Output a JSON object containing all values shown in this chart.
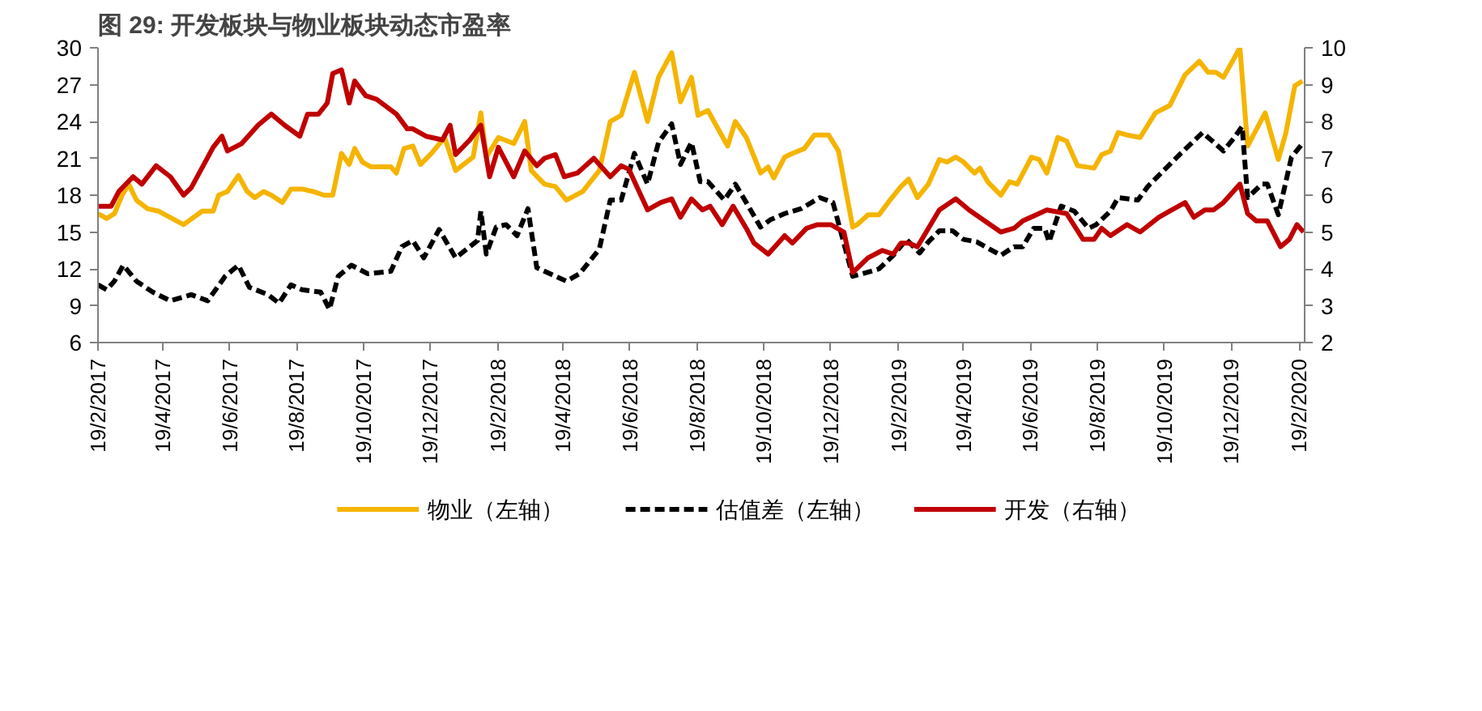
{
  "chart_data": {
    "type": "line",
    "title": "图 29: 开发板块与物业板块动态市盈率",
    "xlim": [
      "2017-02-19",
      "2020-02-24"
    ],
    "xticks": [
      {
        "value": "2017-02-19",
        "label": "19/2/2017"
      },
      {
        "value": "2017-04-19",
        "label": "19/4/2017"
      },
      {
        "value": "2017-06-19",
        "label": "19/6/2017"
      },
      {
        "value": "2017-08-19",
        "label": "19/8/2017"
      },
      {
        "value": "2017-10-19",
        "label": "19/10/2017"
      },
      {
        "value": "2017-12-19",
        "label": "19/12/2017"
      },
      {
        "value": "2018-02-19",
        "label": "19/2/2018"
      },
      {
        "value": "2018-04-19",
        "label": "19/4/2018"
      },
      {
        "value": "2018-06-19",
        "label": "19/6/2018"
      },
      {
        "value": "2018-08-19",
        "label": "19/8/2018"
      },
      {
        "value": "2018-10-19",
        "label": "19/10/2018"
      },
      {
        "value": "2018-12-19",
        "label": "19/12/2018"
      },
      {
        "value": "2019-02-19",
        "label": "19/2/2019"
      },
      {
        "value": "2019-04-19",
        "label": "19/4/2019"
      },
      {
        "value": "2019-06-19",
        "label": "19/6/2019"
      },
      {
        "value": "2019-08-19",
        "label": "19/8/2019"
      },
      {
        "value": "2019-10-19",
        "label": "19/10/2019"
      },
      {
        "value": "2019-12-19",
        "label": "19/12/2019"
      },
      {
        "value": "2020-02-19",
        "label": "19/2/2020"
      }
    ],
    "ylim": [
      6,
      30
    ],
    "yticks": [
      6,
      9,
      12,
      15,
      18,
      21,
      24,
      27,
      30
    ],
    "y2lim": [
      2,
      10
    ],
    "y2ticks": [
      2,
      3,
      4,
      5,
      6,
      7,
      8,
      9,
      10
    ],
    "legend": "bottom",
    "series": [
      {
        "name": "物业（左轴）",
        "color": "#f5b400",
        "line_style": "solid",
        "x": [
          "2017-02-19",
          "2017-02-27",
          "2017-03-06",
          "2017-03-13",
          "2017-03-19",
          "2017-03-26",
          "2017-04-05",
          "2017-04-15",
          "2017-05-08",
          "2017-05-25",
          "2017-06-04",
          "2017-06-09",
          "2017-06-17",
          "2017-06-27",
          "2017-07-05",
          "2017-07-12",
          "2017-07-20",
          "2017-07-27",
          "2017-08-06",
          "2017-08-14",
          "2017-08-24",
          "2017-09-03",
          "2017-09-13",
          "2017-09-21",
          "2017-09-29",
          "2017-10-06",
          "2017-10-11",
          "2017-10-18",
          "2017-10-26",
          "2017-11-13",
          "2017-11-18",
          "2017-11-25",
          "2017-12-03",
          "2017-12-10",
          "2017-12-20",
          "2018-01-01",
          "2018-01-11",
          "2018-01-27",
          "2018-02-03",
          "2018-02-08",
          "2018-02-19",
          "2018-03-05",
          "2018-03-15",
          "2018-03-21",
          "2018-04-02",
          "2018-04-12",
          "2018-04-22",
          "2018-05-07",
          "2018-05-22",
          "2018-06-01",
          "2018-06-11",
          "2018-06-23",
          "2018-07-05",
          "2018-07-15",
          "2018-07-27",
          "2018-08-04",
          "2018-08-14",
          "2018-08-20",
          "2018-08-29",
          "2018-09-06",
          "2018-09-16",
          "2018-09-23",
          "2018-10-03",
          "2018-10-16",
          "2018-10-23",
          "2018-10-28",
          "2018-11-07",
          "2018-11-14",
          "2018-11-25",
          "2018-12-04",
          "2018-12-17",
          "2018-12-26",
          "2019-01-08",
          "2019-01-12",
          "2019-01-22",
          "2019-02-01",
          "2019-02-11",
          "2019-02-21",
          "2019-02-28",
          "2019-03-08",
          "2019-03-18",
          "2019-03-28",
          "2019-04-04",
          "2019-04-12",
          "2019-04-19",
          "2019-04-29",
          "2019-05-04",
          "2019-05-11",
          "2019-05-23",
          "2019-05-31",
          "2019-06-07",
          "2019-06-20",
          "2019-06-27",
          "2019-07-04",
          "2019-07-14",
          "2019-07-22",
          "2019-08-01",
          "2019-08-16",
          "2019-08-23",
          "2019-08-31",
          "2019-09-07",
          "2019-09-15",
          "2019-09-27",
          "2019-10-11",
          "2019-10-24",
          "2019-11-07",
          "2019-11-20",
          "2019-11-28",
          "2019-12-05",
          "2019-12-12",
          "2019-12-27",
          "2020-01-03",
          "2020-01-19",
          "2020-01-31",
          "2020-02-07",
          "2020-02-15",
          "2020-02-22"
        ],
        "values": [
          16.5,
          16.1,
          16.5,
          18.0,
          18.9,
          17.6,
          16.9,
          16.7,
          15.6,
          16.7,
          16.7,
          18.0,
          18.3,
          19.6,
          18.3,
          17.8,
          18.3,
          18.0,
          17.4,
          18.5,
          18.5,
          18.3,
          18.0,
          18.0,
          21.4,
          20.5,
          21.8,
          20.7,
          20.3,
          20.3,
          19.8,
          21.8,
          22.0,
          20.5,
          21.4,
          22.7,
          20.0,
          21.1,
          24.7,
          21.1,
          22.7,
          22.2,
          24.0,
          20.0,
          18.9,
          18.7,
          17.6,
          18.3,
          20.0,
          24.0,
          24.5,
          28.0,
          24.0,
          27.6,
          29.6,
          25.6,
          27.6,
          24.5,
          24.9,
          23.6,
          22.0,
          24.0,
          22.7,
          19.8,
          20.3,
          19.4,
          21.1,
          21.4,
          21.8,
          22.9,
          22.9,
          21.6,
          15.4,
          15.6,
          16.4,
          16.4,
          17.6,
          18.7,
          19.3,
          17.8,
          18.9,
          20.9,
          20.7,
          21.1,
          20.7,
          19.8,
          20.2,
          19.1,
          18.0,
          19.1,
          18.9,
          21.1,
          20.9,
          19.8,
          22.7,
          22.4,
          20.4,
          20.2,
          21.3,
          21.6,
          23.1,
          22.9,
          22.7,
          24.7,
          25.3,
          27.8,
          28.9,
          28.0,
          28.0,
          27.6,
          30.0,
          22.0,
          24.7,
          20.9,
          23.1,
          26.9,
          27.3
        ]
      },
      {
        "name": "估值差（左轴）",
        "color": "#000000",
        "line_style": "dashed",
        "x": [
          "2017-02-19",
          "2017-02-27",
          "2017-03-06",
          "2017-03-14",
          "2017-03-26",
          "2017-04-10",
          "2017-04-26",
          "2017-05-15",
          "2017-05-30",
          "2017-06-15",
          "2017-06-27",
          "2017-07-07",
          "2017-07-24",
          "2017-08-03",
          "2017-08-14",
          "2017-08-24",
          "2017-09-10",
          "2017-09-18",
          "2017-09-26",
          "2017-10-08",
          "2017-10-23",
          "2017-11-13",
          "2017-11-23",
          "2017-12-03",
          "2017-12-13",
          "2017-12-27",
          "2018-01-11",
          "2018-01-31",
          "2018-02-03",
          "2018-02-08",
          "2018-02-17",
          "2018-02-26",
          "2018-03-08",
          "2018-03-18",
          "2018-03-26",
          "2018-04-22",
          "2018-05-04",
          "2018-05-22",
          "2018-06-01",
          "2018-06-11",
          "2018-06-23",
          "2018-07-05",
          "2018-07-15",
          "2018-07-27",
          "2018-08-04",
          "2018-08-14",
          "2018-08-22",
          "2018-08-29",
          "2018-09-13",
          "2018-09-23",
          "2018-10-03",
          "2018-10-16",
          "2018-10-25",
          "2018-11-07",
          "2018-11-22",
          "2018-12-09",
          "2018-12-21",
          "2019-01-08",
          "2019-01-17",
          "2019-02-01",
          "2019-02-14",
          "2019-02-26",
          "2019-03-10",
          "2019-03-18",
          "2019-03-28",
          "2019-04-09",
          "2019-04-19",
          "2019-05-01",
          "2019-05-23",
          "2019-06-04",
          "2019-06-12",
          "2019-06-22",
          "2019-07-02",
          "2019-07-06",
          "2019-07-17",
          "2019-07-29",
          "2019-08-11",
          "2019-08-18",
          "2019-08-31",
          "2019-09-07",
          "2019-09-25",
          "2019-10-04",
          "2019-10-14",
          "2019-11-02",
          "2019-11-23",
          "2019-12-12",
          "2019-12-22",
          "2019-12-29",
          "2020-01-03",
          "2020-01-16",
          "2020-01-21",
          "2020-01-31",
          "2020-02-12",
          "2020-02-22"
        ],
        "values": [
          10.7,
          10.3,
          11.0,
          12.3,
          11.0,
          10.1,
          9.4,
          9.9,
          9.4,
          11.4,
          12.3,
          10.5,
          9.9,
          9.2,
          10.7,
          10.3,
          10.1,
          8.7,
          11.4,
          12.3,
          11.6,
          11.8,
          13.8,
          14.3,
          12.9,
          15.2,
          12.9,
          14.3,
          16.7,
          13.2,
          15.4,
          15.6,
          14.7,
          16.9,
          12.1,
          11.0,
          11.6,
          13.6,
          17.6,
          17.6,
          21.4,
          18.9,
          22.3,
          23.8,
          20.5,
          22.3,
          19.1,
          19.1,
          17.6,
          18.9,
          17.4,
          15.4,
          16.0,
          16.5,
          16.9,
          17.8,
          17.4,
          11.4,
          11.6,
          12.0,
          13.1,
          14.4,
          13.3,
          14.2,
          15.1,
          15.1,
          14.4,
          14.2,
          13.1,
          13.8,
          13.8,
          15.3,
          15.3,
          14.2,
          17.1,
          16.7,
          15.3,
          15.6,
          16.7,
          17.8,
          17.6,
          18.7,
          19.6,
          21.3,
          23.1,
          21.6,
          22.7,
          23.6,
          17.8,
          18.9,
          18.9,
          16.4,
          21.1,
          22.2
        ]
      },
      {
        "name": "开发（右轴）",
        "color": "#c00000",
        "line_style": "solid",
        "axis": "y2",
        "x": [
          "2017-02-19",
          "2017-03-03",
          "2017-03-10",
          "2017-03-23",
          "2017-03-31",
          "2017-04-13",
          "2017-04-26",
          "2017-05-08",
          "2017-05-15",
          "2017-06-04",
          "2017-06-12",
          "2017-06-17",
          "2017-06-30",
          "2017-07-15",
          "2017-07-27",
          "2017-08-08",
          "2017-08-22",
          "2017-08-29",
          "2017-09-08",
          "2017-09-16",
          "2017-09-21",
          "2017-09-29",
          "2017-10-06",
          "2017-10-11",
          "2017-10-21",
          "2017-10-31",
          "2017-11-18",
          "2017-11-28",
          "2017-12-03",
          "2017-12-15",
          "2017-12-30",
          "2018-01-06",
          "2018-01-11",
          "2018-01-24",
          "2018-02-03",
          "2018-02-11",
          "2018-02-19",
          "2018-03-05",
          "2018-03-15",
          "2018-03-26",
          "2018-04-02",
          "2018-04-12",
          "2018-04-20",
          "2018-05-02",
          "2018-05-17",
          "2018-06-01",
          "2018-06-11",
          "2018-06-18",
          "2018-07-05",
          "2018-07-17",
          "2018-07-27",
          "2018-08-04",
          "2018-08-14",
          "2018-08-24",
          "2018-08-31",
          "2018-09-11",
          "2018-09-21",
          "2018-10-03",
          "2018-10-10",
          "2018-10-23",
          "2018-11-01",
          "2018-11-07",
          "2018-11-14",
          "2018-11-27",
          "2018-12-07",
          "2018-12-19",
          "2018-12-31",
          "2019-01-08",
          "2019-01-22",
          "2019-02-04",
          "2019-02-14",
          "2019-02-21",
          "2019-02-28",
          "2019-03-08",
          "2019-03-28",
          "2019-04-12",
          "2019-04-24",
          "2019-05-23",
          "2019-06-04",
          "2019-06-12",
          "2019-07-04",
          "2019-07-22",
          "2019-08-06",
          "2019-08-16",
          "2019-08-23",
          "2019-08-31",
          "2019-09-15",
          "2019-09-27",
          "2019-10-14",
          "2019-10-26",
          "2019-11-07",
          "2019-11-15",
          "2019-11-25",
          "2019-12-03",
          "2019-12-12",
          "2019-12-27",
          "2020-01-03",
          "2020-01-11",
          "2020-01-21",
          "2020-02-02",
          "2020-02-10",
          "2020-02-17",
          "2020-02-23"
        ],
        "values": [
          5.7,
          5.7,
          6.1,
          6.5,
          6.3,
          6.8,
          6.5,
          6.0,
          6.2,
          7.3,
          7.6,
          7.2,
          7.4,
          7.9,
          8.2,
          7.9,
          7.6,
          8.2,
          8.2,
          8.5,
          9.3,
          9.4,
          8.5,
          9.1,
          8.7,
          8.6,
          8.2,
          7.8,
          7.8,
          7.6,
          7.5,
          7.9,
          7.1,
          7.5,
          7.9,
          6.5,
          7.3,
          6.5,
          7.2,
          6.8,
          7.0,
          7.1,
          6.5,
          6.6,
          7.0,
          6.5,
          6.8,
          6.7,
          5.6,
          5.8,
          5.9,
          5.4,
          5.9,
          5.6,
          5.7,
          5.2,
          5.7,
          5.1,
          4.7,
          4.4,
          4.7,
          4.9,
          4.7,
          5.1,
          5.2,
          5.2,
          5.0,
          3.9,
          4.3,
          4.5,
          4.4,
          4.7,
          4.7,
          4.6,
          5.6,
          5.9,
          5.6,
          5.0,
          5.1,
          5.3,
          5.6,
          5.5,
          4.8,
          4.8,
          5.1,
          4.9,
          5.2,
          5.0,
          5.4,
          5.6,
          5.8,
          5.4,
          5.6,
          5.6,
          5.8,
          6.3,
          5.5,
          5.3,
          5.3,
          4.6,
          4.8,
          5.2,
          5.0
        ]
      }
    ]
  }
}
